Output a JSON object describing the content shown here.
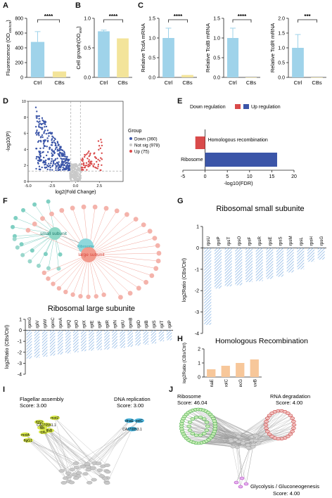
{
  "panels": {
    "A": "A",
    "B": "B",
    "C": "C",
    "D": "D",
    "E": "E",
    "F": "F",
    "G": "G",
    "H": "H",
    "I": "I",
    "J": "J"
  },
  "colors": {
    "blue": "#9fd3ea",
    "yellow": "#f3e49a",
    "down": "#3b55a8",
    "up": "#d94a4a",
    "notsig": "#c9c9c9",
    "orange": "#f7c79a",
    "hatch": "#8fb8e6"
  },
  "chart_data": [
    {
      "id": "A",
      "type": "bar",
      "categories": [
        "Ctrl",
        "CBs"
      ],
      "values": [
        480,
        80
      ],
      "errors": [
        140,
        0
      ],
      "ylim": [
        0,
        800
      ],
      "yticks": [
        "0",
        "200",
        "400",
        "600",
        "800"
      ],
      "ylabel": "Fluorescence (OD",
      "ylabel_sub": "485/528",
      "ylabel_end": ")",
      "significance": "****"
    },
    {
      "id": "B",
      "type": "bar",
      "categories": [
        "Ctrl",
        "CBs"
      ],
      "values": [
        0.78,
        0.66
      ],
      "errors": [
        0.02,
        0
      ],
      "ylim": [
        0,
        1.0
      ],
      "yticks": [
        "0.0",
        "0.5",
        "1.0"
      ],
      "ylabel": "Cell growth(OD",
      "ylabel_sub": "600",
      "ylabel_end": ")",
      "significance": "****"
    },
    {
      "id": "C1",
      "type": "bar",
      "categories": [
        "Ctrl",
        "CBs"
      ],
      "values": [
        1.0,
        0.06
      ],
      "errors": [
        0.25,
        0
      ],
      "ylim": [
        0,
        1.5
      ],
      "yticks": [
        "0.0",
        "0.5",
        "1.0",
        "1.5"
      ],
      "ylabel": "Relative TcdA mRNA",
      "significance": "****"
    },
    {
      "id": "C2",
      "type": "bar",
      "categories": [
        "Ctrl",
        "CBs"
      ],
      "values": [
        1.0,
        0.0
      ],
      "errors": [
        0.25,
        0
      ],
      "ylim": [
        0,
        1.5
      ],
      "yticks": [
        "0.0",
        "0.5",
        "1.0",
        "1.5"
      ],
      "ylabel": "Relative TcdB mRNA",
      "significance": "****"
    },
    {
      "id": "C3",
      "type": "bar",
      "categories": [
        "Ctrl",
        "CBs"
      ],
      "values": [
        1.0,
        0.0
      ],
      "errors": [
        0.45,
        0
      ],
      "ylim": [
        0,
        2.0
      ],
      "yticks": [
        "0.0",
        "0.5",
        "1.0",
        "1.5",
        "2.0"
      ],
      "ylabel": "Relative TcdR mRNA",
      "significance": "***"
    },
    {
      "id": "D",
      "type": "scatter",
      "title": "",
      "xlabel": "log2(Fold Change)",
      "ylabel": "-log10(P)",
      "xlim": [
        -5,
        5
      ],
      "xticks": [
        "-5.0",
        "-2.5",
        "0.0",
        "2.5"
      ],
      "yticks": [
        "0",
        "2",
        "4",
        "6",
        "8",
        "10"
      ],
      "ylim": [
        0,
        10
      ],
      "legend_title": "Group",
      "legend": [
        "Down (360)",
        "Not sig (978)",
        "Up (75)"
      ],
      "series": [
        {
          "name": "Down (360)",
          "count": 360
        },
        {
          "name": "Not sig (978)",
          "count": 978
        },
        {
          "name": "Up (75)",
          "count": 75
        }
      ]
    },
    {
      "id": "E",
      "type": "bar",
      "orientation": "horizontal",
      "categories": [
        "Homologous recombination",
        "Ribosome"
      ],
      "values": [
        -2.2,
        16.2
      ],
      "xlim": [
        -5,
        20
      ],
      "xticks": [
        "-5",
        "0",
        "5",
        "10",
        "15",
        "20"
      ],
      "xlabel": "-log10(FDR)",
      "legend": [
        "Down regulation",
        "Up regulation"
      ]
    },
    {
      "id": "G",
      "type": "bar",
      "title": "Ribosomal small subunite",
      "ylabel": "log2Ratio (CBs/Ctrl)",
      "ylim": [
        -4,
        1
      ],
      "yticks": [
        "-4",
        "-3",
        "-2",
        "-1",
        "0",
        "1"
      ],
      "categories": [
        "rpsU",
        "rpsP",
        "rpsT",
        "rpsO",
        "rpsF",
        "rpsR",
        "rpsE",
        "rpsS",
        "rpsM",
        "rpsL",
        "rpsH",
        "rpsG"
      ],
      "values": [
        -3.6,
        -1.9,
        -1.8,
        -1.75,
        -1.6,
        -1.55,
        -1.45,
        -1.35,
        -1.15,
        -1.0,
        -0.65,
        -0.55
      ]
    },
    {
      "id": "F2",
      "type": "bar",
      "title": "Ribosomal large subunite",
      "ylabel": "log2Ratio (CBs/Ctrl)",
      "ylim": [
        -4,
        1
      ],
      "yticks": [
        "-4",
        "-3",
        "-2",
        "-1",
        "0",
        "1"
      ],
      "categories": [
        "rpmG",
        "rplV",
        "rplW",
        "rpmC",
        "rpmA",
        "rplQ",
        "rplO",
        "rplX",
        "rplE",
        "rplF",
        "rplR",
        "rplN",
        "rplU",
        "rpmB",
        "rplD",
        "rplB",
        "rplS",
        "rplT",
        "rplP"
      ],
      "values": [
        -2.6,
        -2.5,
        -2.4,
        -2.3,
        -2.2,
        -2.1,
        -2.0,
        -1.9,
        -1.85,
        -1.8,
        -1.75,
        -1.65,
        -1.6,
        -1.5,
        -1.4,
        -1.3,
        -1.2,
        -1.0,
        -0.9
      ]
    },
    {
      "id": "H",
      "type": "bar",
      "title": "Homologous Recombination",
      "ylabel": "log2Ratio (CBs/Ctrl)",
      "ylim": [
        0,
        2
      ],
      "yticks": [
        "0",
        "1",
        "2"
      ],
      "categories": [
        "dnaE",
        "polC",
        "recG",
        "ruvB"
      ],
      "values": [
        0.55,
        0.8,
        1.0,
        1.25
      ]
    }
  ],
  "F": {
    "small": "small subunit",
    "ribosome": "Ribosome",
    "large": "large subunit"
  },
  "I": {
    "flagellar": "Flagellar assembly",
    "flag_score": "Score: 3.00",
    "dna": "DNA replication",
    "dna_score": "Score: 3.00",
    "nodes_left": [
      "motA",
      "flgG1",
      "fliS2",
      "fliB",
      "rpfB",
      "CAJ70551.1",
      "motZ",
      "flhB"
    ],
    "nodes_right": [
      "dnaE",
      "polC",
      "CAJ70853.1"
    ]
  },
  "J": {
    "ribosome": "Ribosome",
    "ribo_score": "Score: 46.04",
    "rna": "RNA degradation",
    "rna_score": "Score: 4.00",
    "glyco": "Glycolysis / Gluconeogenesis",
    "glyco_score": "Score: 4.00"
  }
}
